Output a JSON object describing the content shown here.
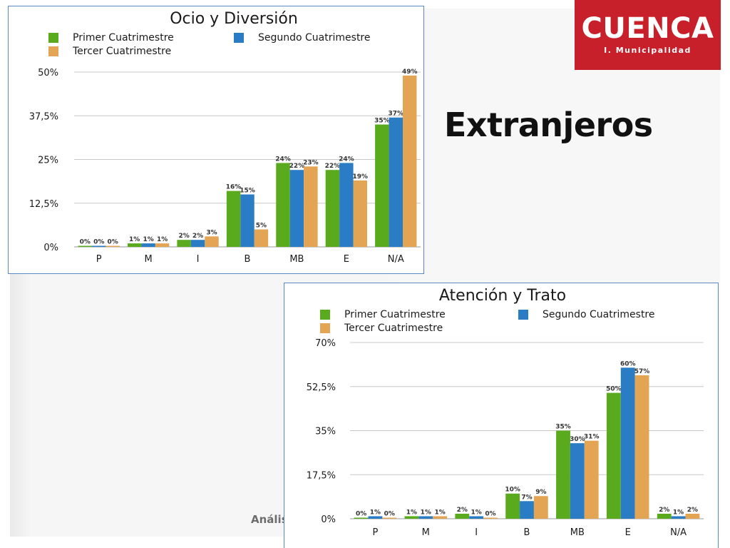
{
  "slide": {
    "heading": "Extranjeros",
    "footer_fragment": "Análisi",
    "logo": {
      "word": "CUENCA",
      "subtitle": "I. Municipalidad"
    }
  },
  "colors": {
    "primer": "#5aaa1e",
    "segundo": "#2a7cc4",
    "tercer": "#e3a453",
    "brand": "#c8202a",
    "panel_border": "#5c86c4",
    "grid": "#c8c8c8"
  },
  "chart_data": [
    {
      "type": "bar",
      "title": "Ocio y Diversión",
      "categories": [
        "P",
        "M",
        "I",
        "B",
        "MB",
        "E",
        "N/A"
      ],
      "series": [
        {
          "name": "Primer Cuatrimestre",
          "values": [
            0,
            1,
            2,
            16,
            24,
            22,
            35
          ]
        },
        {
          "name": "Segundo Cuatrimestre",
          "values": [
            0,
            1,
            2,
            15,
            22,
            24,
            37
          ]
        },
        {
          "name": "Tercer Cuatrimestre",
          "values": [
            0,
            1,
            3,
            5,
            23,
            19,
            49
          ]
        }
      ],
      "value_suffix": "%",
      "ylim": [
        0,
        50
      ],
      "yticks": [
        "0%",
        "12,5%",
        "25%",
        "37,5%",
        "50%"
      ],
      "grid": true,
      "legend": "top"
    },
    {
      "type": "bar",
      "title": "Atención y Trato",
      "categories": [
        "P",
        "M",
        "I",
        "B",
        "MB",
        "E",
        "N/A"
      ],
      "series": [
        {
          "name": "Primer Cuatrimestre",
          "values": [
            0,
            1,
            2,
            10,
            35,
            50,
            2
          ]
        },
        {
          "name": "Segundo Cuatrimestre",
          "values": [
            1,
            1,
            1,
            7,
            30,
            60,
            1
          ]
        },
        {
          "name": "Tercer Cuatrimestre",
          "values": [
            0,
            1,
            0,
            9,
            31,
            57,
            2
          ]
        }
      ],
      "value_suffix": "%",
      "ylim": [
        0,
        70
      ],
      "yticks": [
        "0%",
        "17,5%",
        "35%",
        "52,5%",
        "70%"
      ],
      "grid": true,
      "legend": "top"
    }
  ]
}
